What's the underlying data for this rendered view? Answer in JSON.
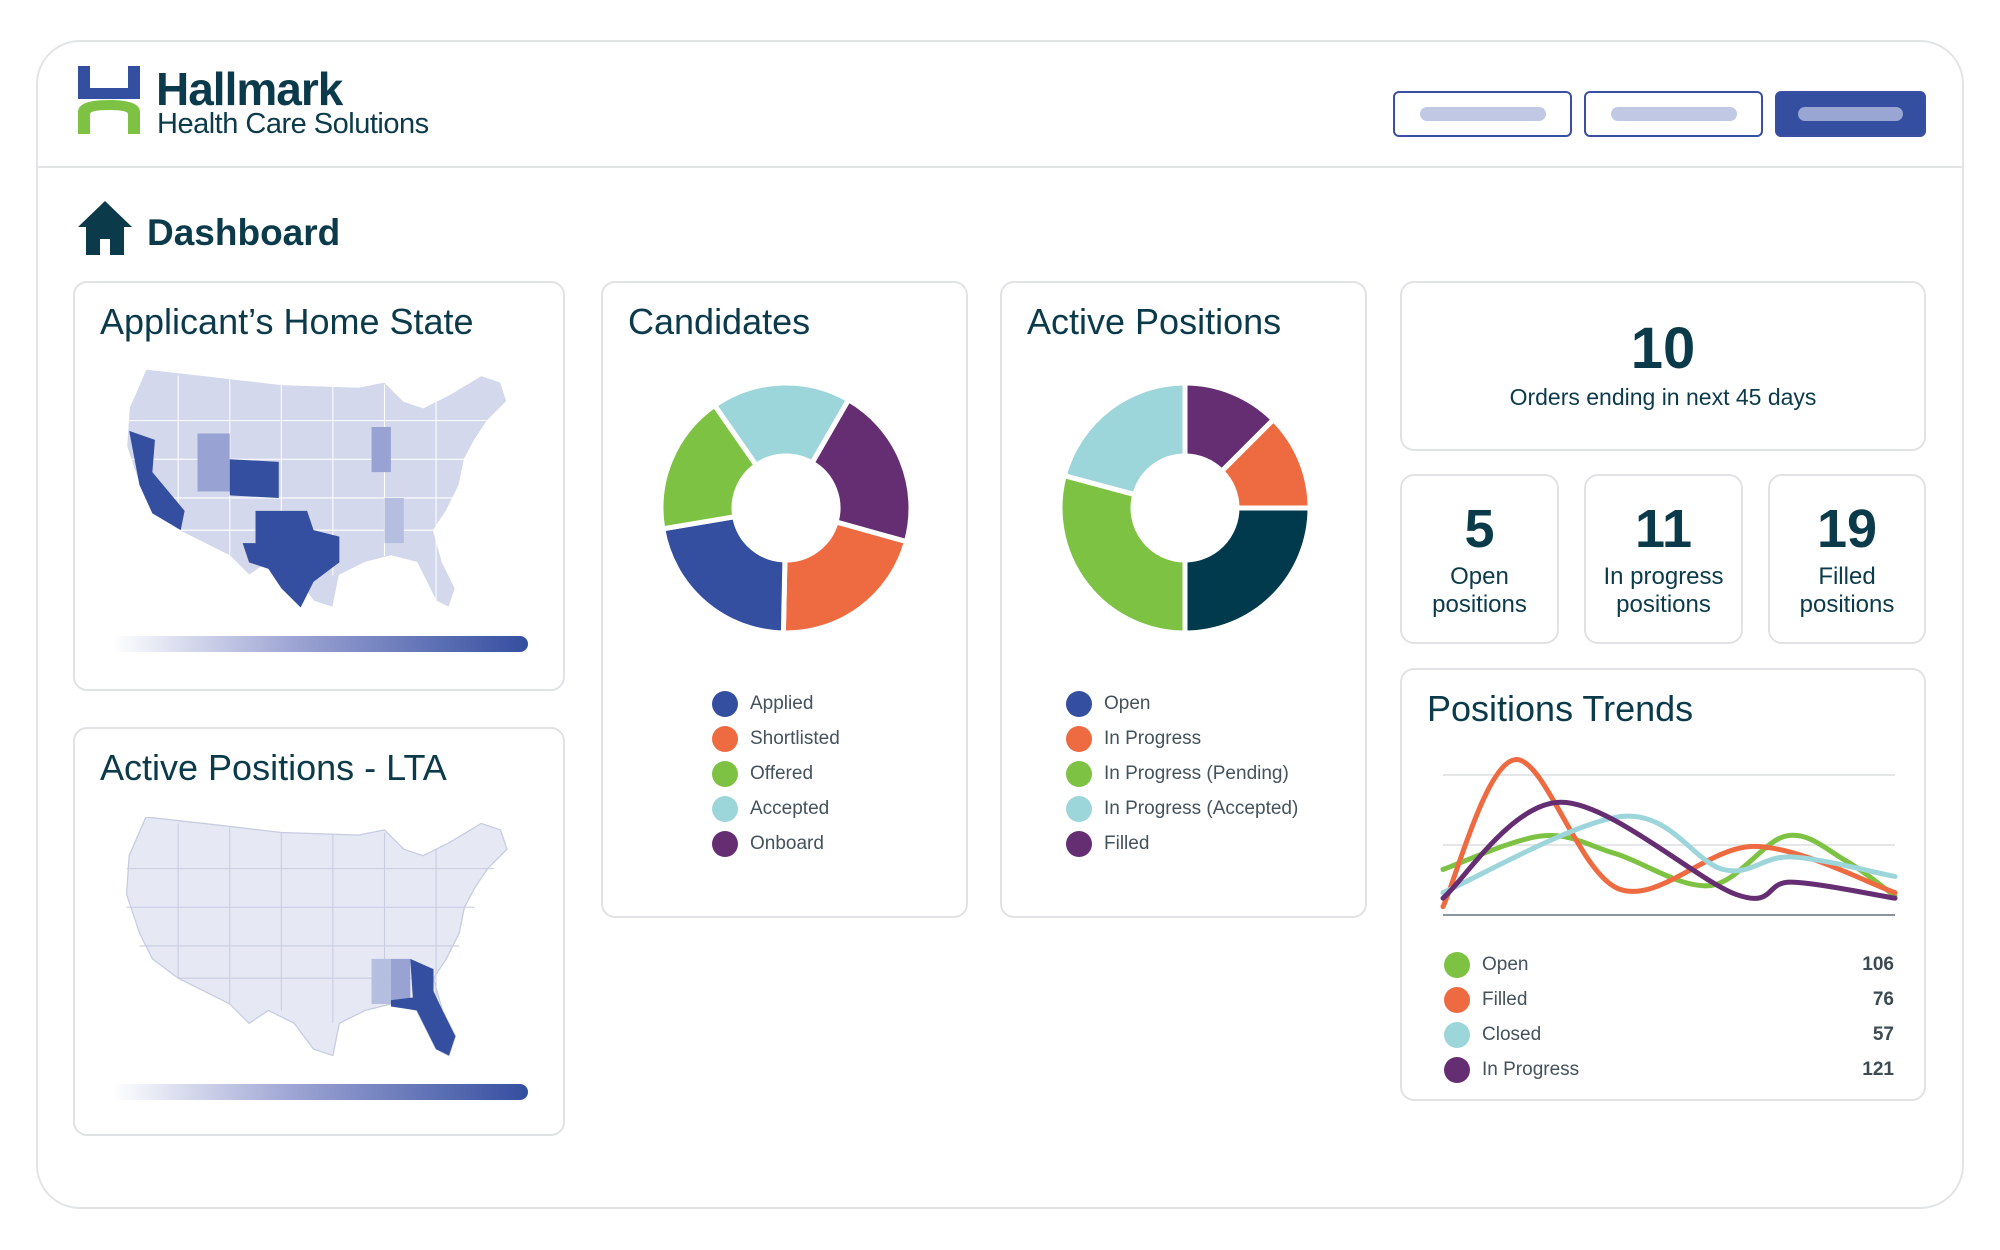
{
  "header": {
    "brand": "Hallmark",
    "subtitle": "Health Care Solutions",
    "buttons": [
      "",
      "",
      ""
    ]
  },
  "page": {
    "title": "Dashboard"
  },
  "colors": {
    "blue": "#344ea0",
    "orange": "#ee6b42",
    "green": "#7dc242",
    "lightblue": "#9dd6da",
    "purple": "#652d72",
    "navy": "#023a4d",
    "title": "#0b3a4a"
  },
  "home_state": {
    "title": "Applicant’s Home State",
    "highlighted": [
      "California",
      "Texas",
      "Colorado"
    ]
  },
  "lta": {
    "title": "Active Positions - LTA",
    "highlighted": [
      "Florida"
    ]
  },
  "candidates": {
    "title": "Candidates",
    "items": [
      {
        "label": "Applied",
        "value": 22,
        "color": "#344ea0"
      },
      {
        "label": "Shortlisted",
        "value": 21,
        "color": "#ee6b42"
      },
      {
        "label": "Offered",
        "value": 18,
        "color": "#7dc242"
      },
      {
        "label": "Accepted",
        "value": 18,
        "color": "#9dd6da"
      },
      {
        "label": "Onboard",
        "value": 21,
        "color": "#652d72"
      }
    ]
  },
  "active_positions": {
    "title": "Active Positions",
    "items": [
      {
        "label": "Open",
        "value": 90,
        "color": "#344ea0",
        "slice_color": "#023a4d"
      },
      {
        "label": "In Progress",
        "value": 45,
        "color": "#ee6b42",
        "slice_color": "#ee6b42"
      },
      {
        "label": "In Progress (Pending)",
        "value": 105,
        "color": "#7dc242",
        "slice_color": "#7dc242"
      },
      {
        "label": "In Progress (Accepted)",
        "value": 75,
        "color": "#9dd6da",
        "slice_color": "#9dd6da"
      },
      {
        "label": "Filled",
        "value": 45,
        "color": "#652d72",
        "slice_color": "#652d72"
      }
    ]
  },
  "stats": {
    "orders": {
      "value": "10",
      "label": "Orders ending in next 45 days"
    },
    "open": {
      "value": "5",
      "line1": "Open",
      "line2": "positions"
    },
    "in_progress": {
      "value": "11",
      "line1": "In progress",
      "line2": "positions"
    },
    "filled": {
      "value": "19",
      "line1": "Filled",
      "line2": "positions"
    }
  },
  "chart_data": {
    "type": "line",
    "title": "Positions Trends",
    "grid": true,
    "ylim": [
      0,
      2.3
    ],
    "xlim": [
      0,
      10
    ],
    "series": [
      {
        "name": "Open",
        "total": "106",
        "color": "#7dc242",
        "x": [
          0,
          2.2,
          3.8,
          5.9,
          7.6,
          8.9,
          10
        ],
        "y": [
          0.65,
          1.13,
          0.88,
          0.42,
          1.13,
          0.78,
          0.27
        ]
      },
      {
        "name": "Filled",
        "total": "76",
        "color": "#ee6b42",
        "x": [
          0,
          1.6,
          3.9,
          6.9,
          10
        ],
        "y": [
          0.12,
          2.22,
          0.37,
          0.98,
          0.32
        ]
      },
      {
        "name": "Closed",
        "total": "57",
        "color": "#9dd6da",
        "x": [
          0,
          4,
          6.2,
          7.7,
          10
        ],
        "y": [
          0.32,
          1.41,
          0.65,
          0.83,
          0.55
        ]
      },
      {
        "name": "In Progress",
        "total": "121",
        "color": "#652d72",
        "x": [
          0,
          2.6,
          6.5,
          7.7,
          10
        ],
        "y": [
          0.24,
          1.61,
          0.29,
          0.47,
          0.24
        ]
      }
    ]
  }
}
